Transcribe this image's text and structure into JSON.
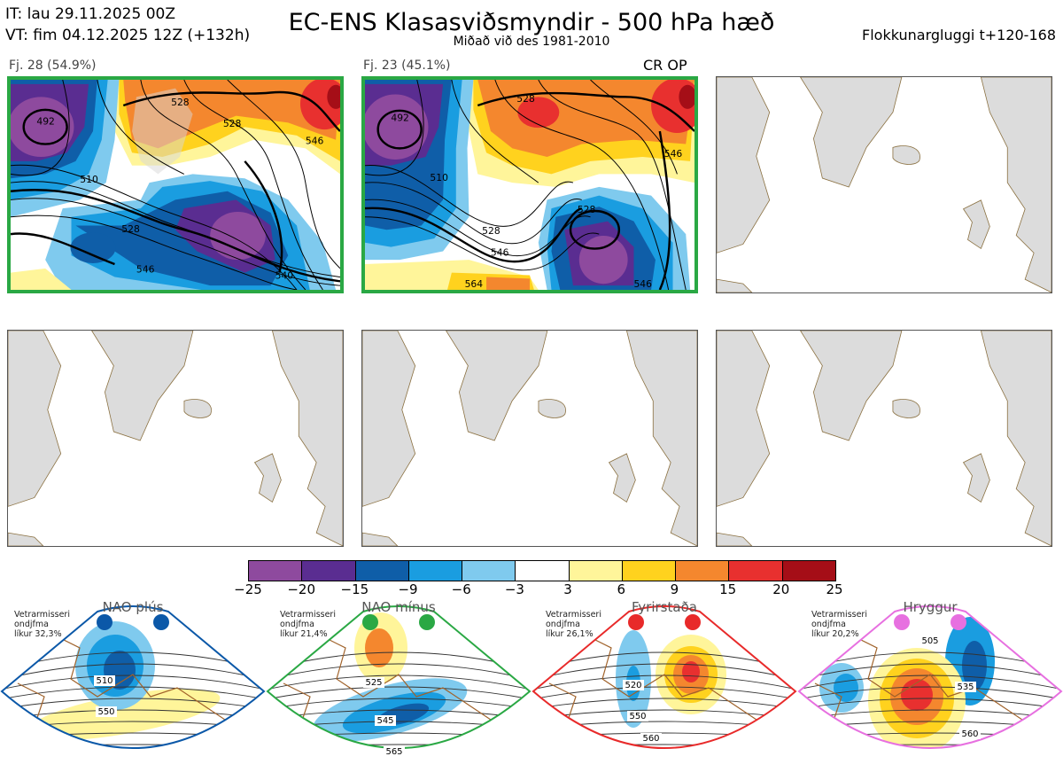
{
  "header": {
    "it": "IT: lau 29.11.2025 00Z",
    "vt": "VT: fim 04.12.2025 12Z  (+132h)",
    "title": "EC-ENS Klasasviðsmyndir - 500 hPa hæð",
    "subtitle": "Miðað við des 1981-2010",
    "window": "Flokkunargluggi t+120-168"
  },
  "panels": [
    {
      "label": "Fj. 28 (54.9%)",
      "contours": [
        "492",
        "528",
        "528",
        "546",
        "510",
        "528",
        "546",
        "540"
      ]
    },
    {
      "label": "Fj. 23 (45.1%)",
      "marker": "CR OP",
      "contours": [
        "492",
        "528",
        "546",
        "510",
        "528",
        "528",
        "546",
        "564",
        "546"
      ]
    }
  ],
  "colorbar": {
    "colors": [
      "#8e4a9e",
      "#5a2d91",
      "#0f5ea8",
      "#1a9de0",
      "#7fcaee",
      "#ffffff",
      "#fff59a",
      "#ffd21e",
      "#f4872e",
      "#e8302f",
      "#a50e17"
    ],
    "ticks": [
      "−25",
      "−20",
      "−15",
      "−9",
      "−6",
      "−3",
      "3",
      "6",
      "9",
      "15",
      "20",
      "25"
    ]
  },
  "climate": [
    {
      "title": "NAO plús",
      "color": "#0b58a8",
      "info": [
        "Vetrarmisseri",
        "ondjfma",
        "líkur 32,3%"
      ],
      "labels": [
        "510",
        "550"
      ]
    },
    {
      "title": "NAO mínus",
      "color": "#2aa844",
      "info": [
        "Vetrarmisseri",
        "ondjfma",
        "líkur 21,4%"
      ],
      "labels": [
        "525",
        "545",
        "565"
      ]
    },
    {
      "title": "Fyrirstaða",
      "color": "#e82a2a",
      "info": [
        "Vetrarmisseri",
        "ondjfma",
        "líkur 26,1%"
      ],
      "labels": [
        "520",
        "550",
        "560"
      ]
    },
    {
      "title": "Hryggur",
      "color": "#e770e0",
      "info": [
        "Vetrarmisseri",
        "ondjfma",
        "líkur 20,2%"
      ],
      "labels": [
        "505",
        "535",
        "560"
      ]
    }
  ]
}
